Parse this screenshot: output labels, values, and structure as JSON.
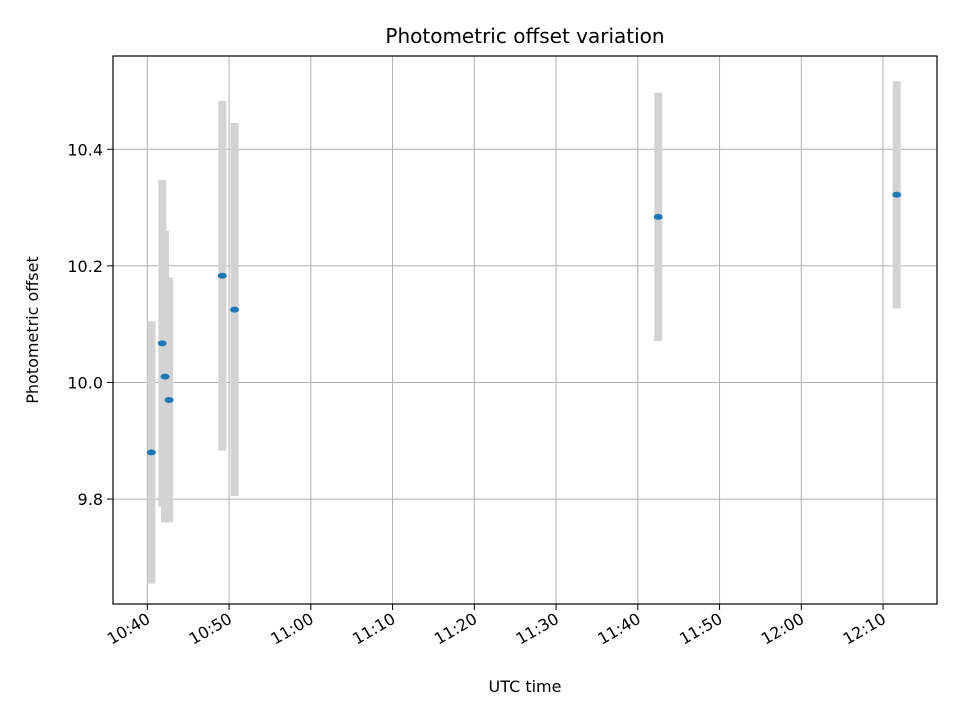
{
  "chart_data": {
    "type": "scatter",
    "title": "Photometric offset variation",
    "xlabel": "UTC time",
    "ylabel": "Photometric offset",
    "grid": true,
    "x_tick_labels": [
      "10:40",
      "10:50",
      "11:00",
      "11:10",
      "11:20",
      "11:30",
      "11:40",
      "11:50",
      "12:00",
      "12:10"
    ],
    "x_tick_minutes": [
      640,
      650,
      660,
      670,
      680,
      690,
      700,
      710,
      720,
      730
    ],
    "xlim_minutes": [
      635.8,
      736.6
    ],
    "y_ticks": [
      9.8,
      10.0,
      10.2,
      10.4
    ],
    "y_tick_labels": [
      "9.8",
      "10.0",
      "10.2",
      "10.4"
    ],
    "ylim": [
      9.62,
      10.56
    ],
    "series": [
      {
        "points": [
          {
            "time": "10:40:30",
            "minutes": 640.5,
            "y": 9.88,
            "yerr": 0.225
          },
          {
            "time": "10:41:50",
            "minutes": 641.83,
            "y": 10.067,
            "yerr": 0.28
          },
          {
            "time": "10:42:10",
            "minutes": 642.17,
            "y": 10.01,
            "yerr": 0.25
          },
          {
            "time": "10:42:40",
            "minutes": 642.67,
            "y": 9.97,
            "yerr": 0.21
          },
          {
            "time": "10:49:10",
            "minutes": 649.17,
            "y": 10.183,
            "yerr": 0.3
          },
          {
            "time": "10:50:40",
            "minutes": 650.67,
            "y": 10.125,
            "yerr": 0.32
          },
          {
            "time": "11:42:30",
            "minutes": 702.5,
            "y": 10.284,
            "yerr": 0.213
          },
          {
            "time": "12:11:40",
            "minutes": 731.67,
            "y": 10.322,
            "yerr": 0.195
          }
        ]
      }
    ],
    "colors": {
      "marker": "#1f77b4",
      "errorbar": "#d3d3d3",
      "grid": "#b0b0b0",
      "axes": "#000000"
    }
  }
}
